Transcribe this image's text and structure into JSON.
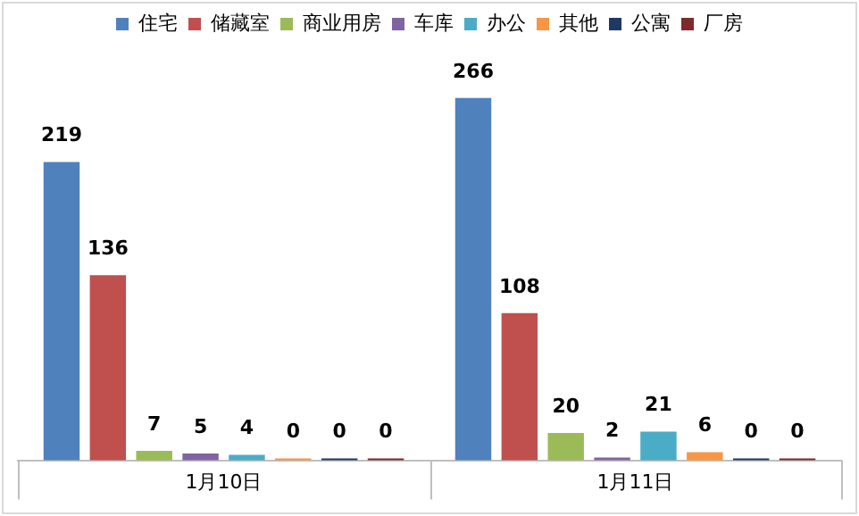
{
  "chart_data": {
    "type": "bar",
    "categories": [
      "1月10日",
      "1月11日"
    ],
    "series": [
      {
        "name": "住宅",
        "color": "#4f81bd",
        "values": [
          219,
          266
        ]
      },
      {
        "name": "储藏室",
        "color": "#c0504d",
        "values": [
          136,
          108
        ]
      },
      {
        "name": "商业用房",
        "color": "#9bbb59",
        "values": [
          7,
          20
        ]
      },
      {
        "name": "车库",
        "color": "#8064a2",
        "values": [
          5,
          2
        ]
      },
      {
        "name": "办公",
        "color": "#4bacc6",
        "values": [
          4,
          21
        ]
      },
      {
        "name": "其他",
        "color": "#f79646",
        "values": [
          0,
          6
        ]
      },
      {
        "name": "公寓",
        "color": "#1f3864",
        "values": [
          0,
          0
        ]
      },
      {
        "name": "厂房",
        "color": "#7f2a2a",
        "values": [
          0,
          0
        ]
      }
    ],
    "data_labels": true,
    "legend": "top",
    "grid": false,
    "tick_labels": "x"
  }
}
